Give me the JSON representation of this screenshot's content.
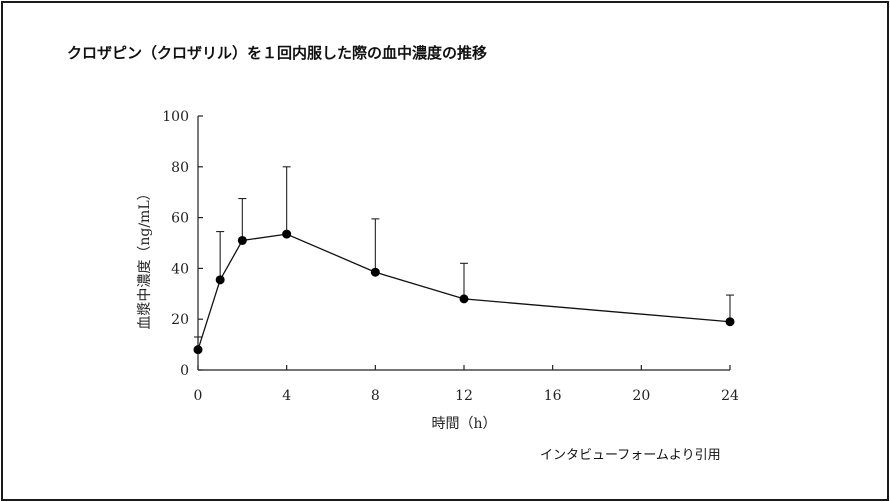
{
  "title": "クロザピン（クロザリル）を１回内服した際の血中濃度の推移",
  "citation": "インタビューフォームより引用",
  "chart_data": {
    "type": "line",
    "title": "",
    "xlabel": "時間（h）",
    "ylabel": "血漿中濃度（ng/mL）",
    "xlim": [
      0,
      24
    ],
    "ylim": [
      0,
      100
    ],
    "xticks": [
      0,
      4,
      8,
      12,
      16,
      20,
      24
    ],
    "xtick_labels": [
      "0",
      "4",
      "8",
      "12",
      "16",
      "20",
      "24"
    ],
    "yticks": [
      0,
      20,
      40,
      60,
      80,
      100
    ],
    "ytick_labels": [
      "0",
      "20",
      "40",
      "60",
      "80",
      "100"
    ],
    "grid": false,
    "legend": "none",
    "series": [
      {
        "x": [
          0,
          1,
          2,
          4,
          8,
          12,
          24
        ],
        "y": [
          8,
          35.5,
          51,
          53.5,
          38.5,
          28,
          19
        ],
        "error_upper": [
          13,
          54.5,
          67.5,
          80,
          59.5,
          42,
          29.5
        ]
      }
    ]
  }
}
